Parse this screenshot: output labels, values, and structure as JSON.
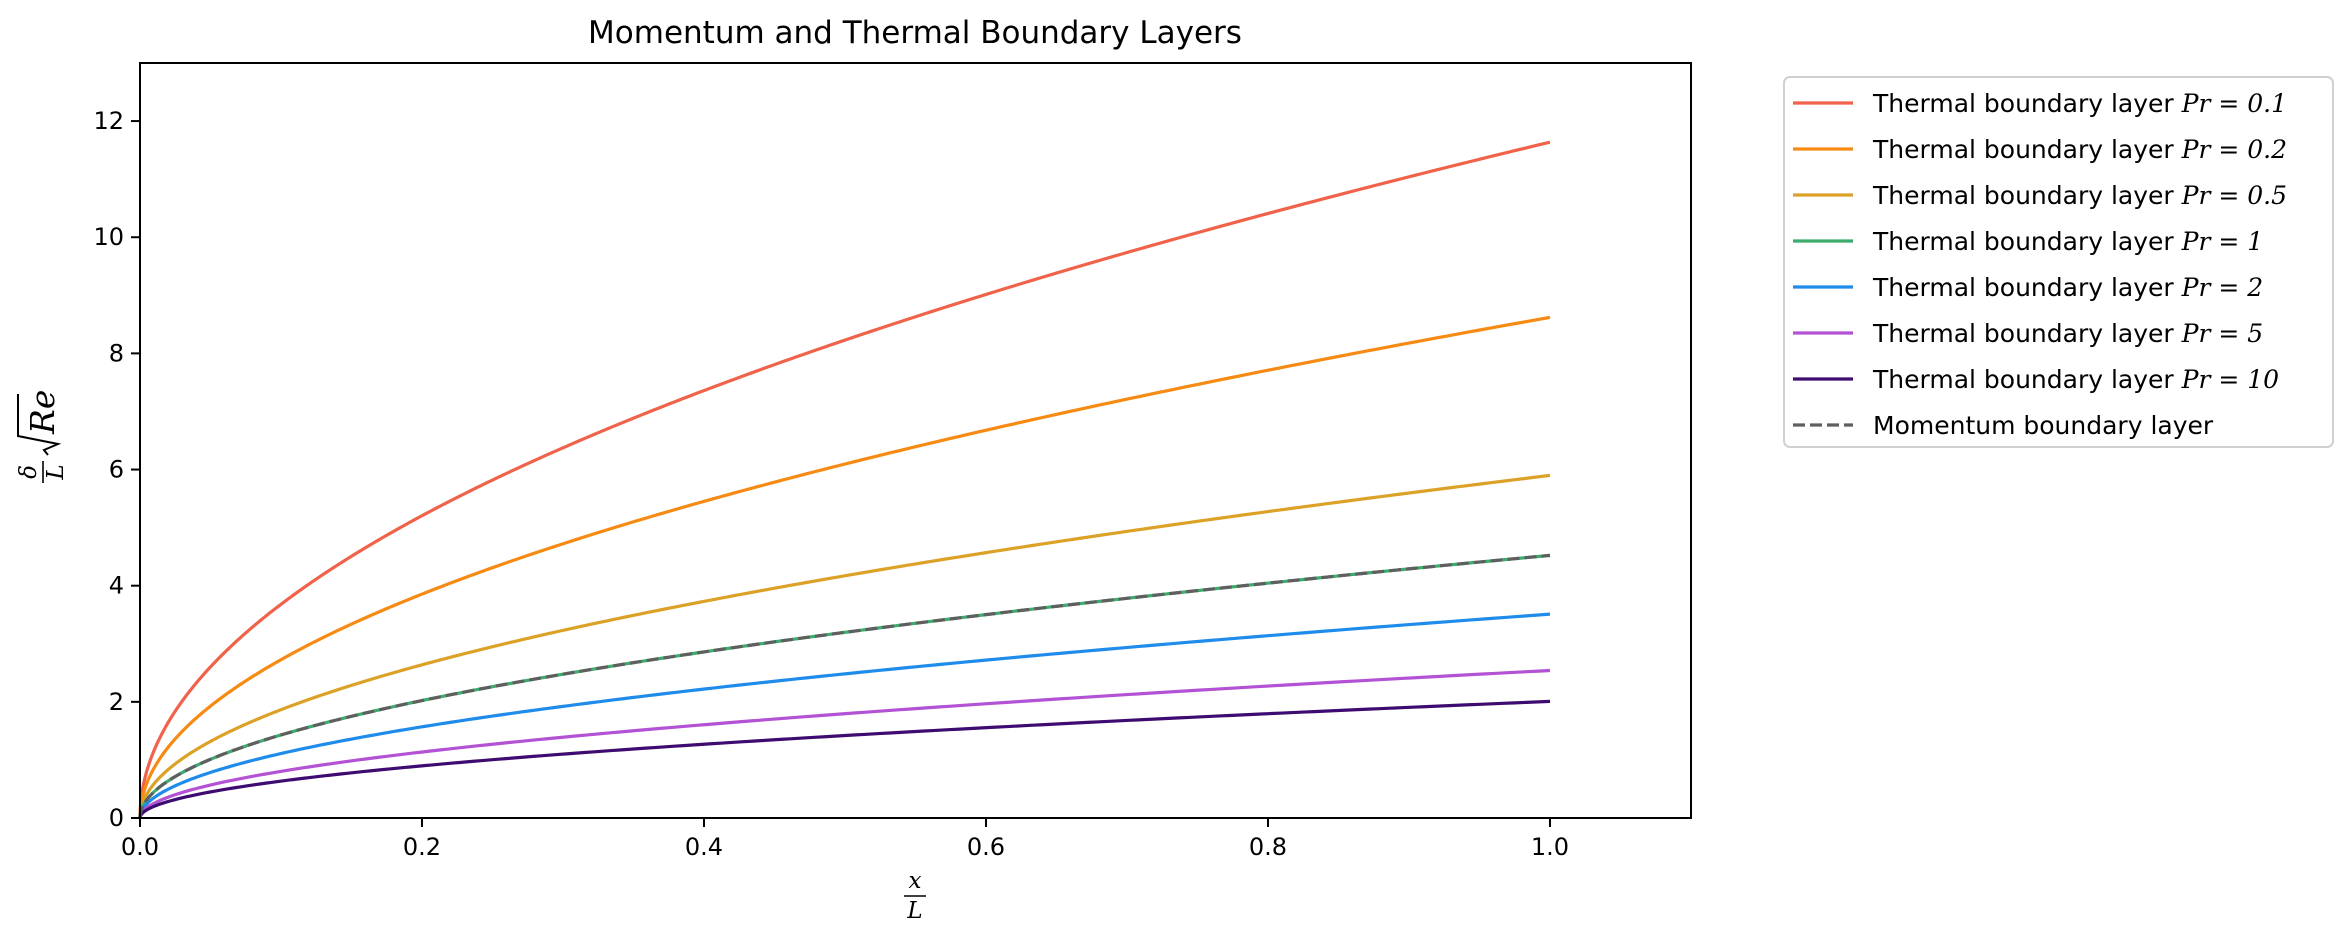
{
  "chart_data": {
    "type": "line",
    "title": "Momentum and Thermal Boundary Layers",
    "xlabel": {
      "numerator": "x",
      "denominator": "L"
    },
    "ylabel": {
      "numerator": "δ",
      "denominator": "L",
      "radicand": "Re"
    },
    "xlim": [
      0.0,
      1.1
    ],
    "ylim": [
      0,
      13
    ],
    "xticks": [
      0.0,
      0.2,
      0.4,
      0.6,
      0.8,
      1.0
    ],
    "xtick_labels": [
      "0.0",
      "0.2",
      "0.4",
      "0.6",
      "0.8",
      "1.0"
    ],
    "yticks": [
      0,
      2,
      4,
      6,
      8,
      10,
      12
    ],
    "ytick_labels": [
      "0",
      "2",
      "4",
      "6",
      "8",
      "10",
      "12"
    ],
    "grid": false,
    "legend_position": "outside-upper-right",
    "x": [
      0.0,
      0.01,
      0.02,
      0.05,
      0.1,
      0.15,
      0.2,
      0.25,
      0.3,
      0.4,
      0.5,
      0.6,
      0.7,
      0.8,
      0.9,
      1.0
    ],
    "series": [
      {
        "name_prefix": "Thermal boundary layer ",
        "name_math": "Pr = 0.1",
        "color": "#f0624a",
        "dash": "solid",
        "values": [
          0.0,
          1.164,
          1.646,
          2.602,
          3.68,
          4.507,
          5.205,
          5.819,
          6.374,
          7.36,
          8.229,
          9.015,
          9.737,
          10.409,
          11.04,
          11.637
        ]
      },
      {
        "name_prefix": "Thermal boundary layer ",
        "name_math": "Pr = 0.2",
        "color": "#f68a12",
        "dash": "solid",
        "values": [
          0.0,
          0.862,
          1.219,
          1.927,
          2.726,
          3.339,
          3.855,
          4.31,
          4.722,
          5.452,
          6.095,
          6.677,
          7.212,
          7.71,
          8.178,
          8.62
        ]
      },
      {
        "name_prefix": "Thermal boundary layer ",
        "name_math": "Pr = 0.5",
        "color": "#dca127",
        "dash": "solid",
        "values": [
          0.0,
          0.59,
          0.834,
          1.319,
          1.865,
          2.284,
          2.638,
          2.949,
          3.231,
          3.73,
          4.171,
          4.569,
          4.935,
          5.276,
          5.596,
          5.899
        ]
      },
      {
        "name_prefix": "Thermal boundary layer ",
        "name_math": "Pr = 1",
        "color": "#3bac6b",
        "dash": "solid",
        "values": [
          0.0,
          0.452,
          0.639,
          1.011,
          1.43,
          1.751,
          2.022,
          2.261,
          2.476,
          2.86,
          3.197,
          3.502,
          3.783,
          4.044,
          4.29,
          4.522
        ]
      },
      {
        "name_prefix": "Thermal boundary layer ",
        "name_math": "Pr = 2",
        "color": "#1f8ceb",
        "dash": "solid",
        "values": [
          0.0,
          0.351,
          0.496,
          0.785,
          1.11,
          1.359,
          1.57,
          1.755,
          1.922,
          2.22,
          2.482,
          2.719,
          2.936,
          3.139,
          3.33,
          3.51
        ]
      },
      {
        "name_prefix": "Thermal boundary layer ",
        "name_math": "Pr = 5",
        "color": "#b352d4",
        "dash": "solid",
        "values": [
          0.0,
          0.254,
          0.359,
          0.568,
          0.803,
          0.984,
          1.136,
          1.27,
          1.391,
          1.606,
          1.796,
          1.967,
          2.125,
          2.272,
          2.41,
          2.54
        ]
      },
      {
        "name_prefix": "Thermal boundary layer ",
        "name_math": "Pr = 10",
        "color": "#3e0b70",
        "dash": "solid",
        "values": [
          0.0,
          0.201,
          0.284,
          0.449,
          0.635,
          0.778,
          0.898,
          1.004,
          1.1,
          1.27,
          1.42,
          1.555,
          1.68,
          1.796,
          1.905,
          2.008
        ]
      },
      {
        "name_prefix": "Momentum boundary layer",
        "name_math": "",
        "color": "#5f5f5f",
        "dash": "dashed",
        "values": [
          0.0,
          0.452,
          0.639,
          1.011,
          1.43,
          1.751,
          2.022,
          2.261,
          2.476,
          2.86,
          3.197,
          3.502,
          3.783,
          4.044,
          4.29,
          4.522
        ]
      }
    ]
  }
}
